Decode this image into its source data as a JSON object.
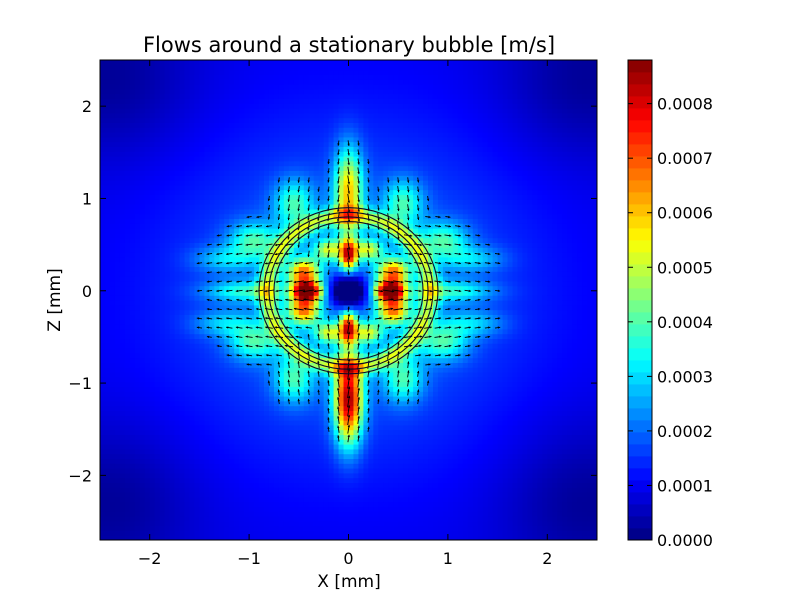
{
  "chart_data": {
    "type": "heatmap",
    "title": "Flows around a stationary bubble [m/s]",
    "xlabel": "X [mm]",
    "ylabel": "Z [mm]",
    "xlim": [
      -2.5,
      2.5
    ],
    "ylim": [
      -2.7,
      2.5
    ],
    "xticks": [
      {
        "value": -2,
        "label": "−2"
      },
      {
        "value": -1,
        "label": "−1"
      },
      {
        "value": 0,
        "label": "0"
      },
      {
        "value": 1,
        "label": "1"
      },
      {
        "value": 2,
        "label": "2"
      }
    ],
    "yticks": [
      {
        "value": -2,
        "label": "−2"
      },
      {
        "value": -1,
        "label": "−1"
      },
      {
        "value": 0,
        "label": "0"
      },
      {
        "value": 1,
        "label": "1"
      },
      {
        "value": 2,
        "label": "2"
      }
    ],
    "colorbar": {
      "min": 0.0,
      "max": 0.00088,
      "ticks": [
        {
          "value": 0.0,
          "label": "0.0000"
        },
        {
          "value": 0.0001,
          "label": "0.0001"
        },
        {
          "value": 0.0002,
          "label": "0.0002"
        },
        {
          "value": 0.0003,
          "label": "0.0003"
        },
        {
          "value": 0.0004,
          "label": "0.0004"
        },
        {
          "value": 0.0005,
          "label": "0.0005"
        },
        {
          "value": 0.0006,
          "label": "0.0006"
        },
        {
          "value": 0.0007,
          "label": "0.0007"
        },
        {
          "value": 0.0008,
          "label": "0.0008"
        }
      ],
      "colormap": "jet"
    },
    "bubble": {
      "center": [
        0,
        0
      ],
      "radius_mm": 0.8,
      "rings": [
        0.75,
        0.8,
        0.85,
        0.9
      ]
    },
    "field_peaks_mm": [
      {
        "x": -0.45,
        "z": 0.0,
        "speed": 0.00088
      },
      {
        "x": 0.45,
        "z": 0.0,
        "speed": 0.00088
      },
      {
        "x": 0.0,
        "z": 0.35,
        "speed": 0.00075
      },
      {
        "x": 0.0,
        "z": -0.35,
        "speed": 0.00075
      },
      {
        "x": 0.0,
        "z": 1.0,
        "speed": 0.00055
      },
      {
        "x": 0.0,
        "z": -1.1,
        "speed": 0.00055
      }
    ],
    "grid": false,
    "quiver": true
  }
}
